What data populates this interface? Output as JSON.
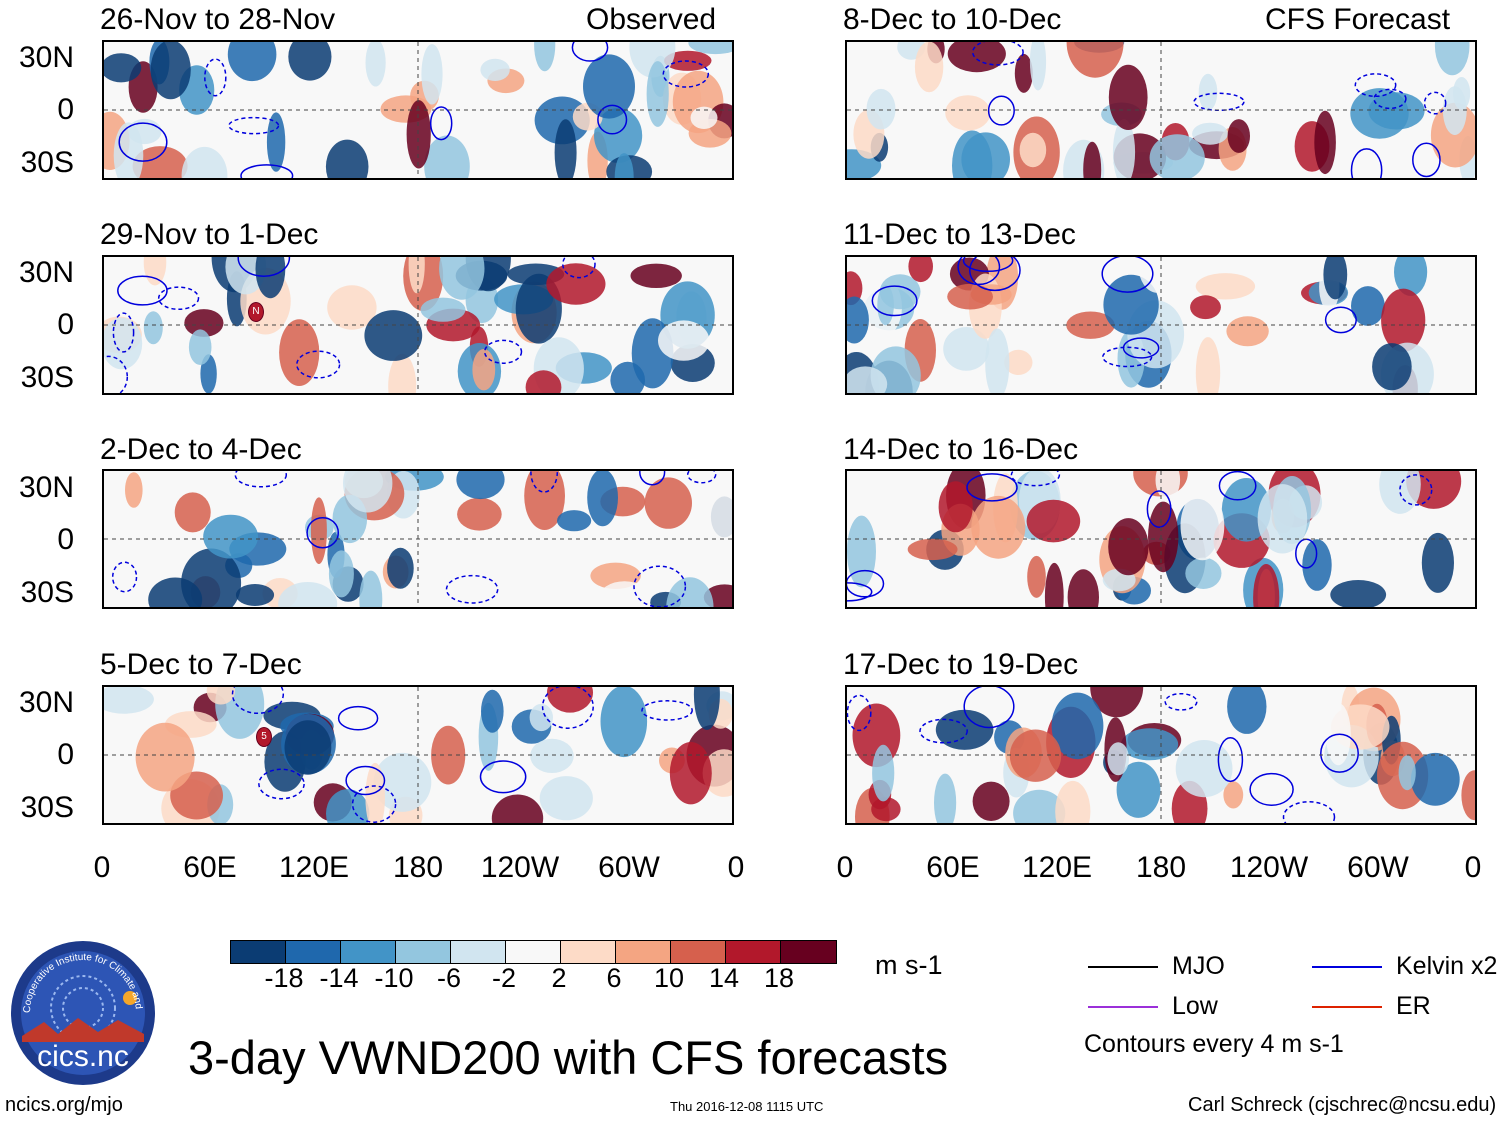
{
  "header": {
    "left_tag": "Observed",
    "right_tag": "CFS Forecast"
  },
  "panels": {
    "left": [
      "26-Nov to 28-Nov",
      "29-Nov to 1-Dec",
      "2-Dec to 4-Dec",
      "5-Dec to 7-Dec"
    ],
    "right": [
      "8-Dec to 10-Dec",
      "11-Dec to 13-Dec",
      "14-Dec to 16-Dec",
      "17-Dec to 19-Dec"
    ]
  },
  "y_axis": {
    "n30": "30N",
    "eq": "0",
    "s30": "30S"
  },
  "x_axis": [
    "0",
    "60E",
    "120E",
    "180",
    "120W",
    "60W",
    "0"
  ],
  "storm_markers": {
    "p1": "N",
    "p3": "5"
  },
  "colorbar": {
    "colors": [
      "#0b3c73",
      "#1f68ad",
      "#4294c7",
      "#93c6df",
      "#d1e5f0",
      "#f8f8f8",
      "#fddbc7",
      "#f4a582",
      "#d6604d",
      "#b2182b",
      "#67001f"
    ],
    "ticks": [
      "-18",
      "-14",
      "-10",
      "-6",
      "-2",
      "2",
      "6",
      "10",
      "14",
      "18"
    ],
    "units": "m s-1"
  },
  "legend": {
    "mjo": "MJO",
    "kelvin": "Kelvin x2",
    "low": "Low",
    "er": "ER",
    "contours": "Contours every 4 m s-1",
    "colors": {
      "mjo": "#000000",
      "kelvin": "#0000dd",
      "low": "#9b30d9",
      "er": "#dd2200"
    }
  },
  "logo": {
    "text": "cics.nc",
    "ring_text": "Cooperative Institute for Climate and Satellites"
  },
  "title": "3-day VWND200 with CFS forecasts",
  "footer": {
    "left": "ncics.org/mjo",
    "center": "Thu 2016-12-08 1115 UTC",
    "right": "Carl Schreck (cjschrec@ncsu.edu)"
  }
}
